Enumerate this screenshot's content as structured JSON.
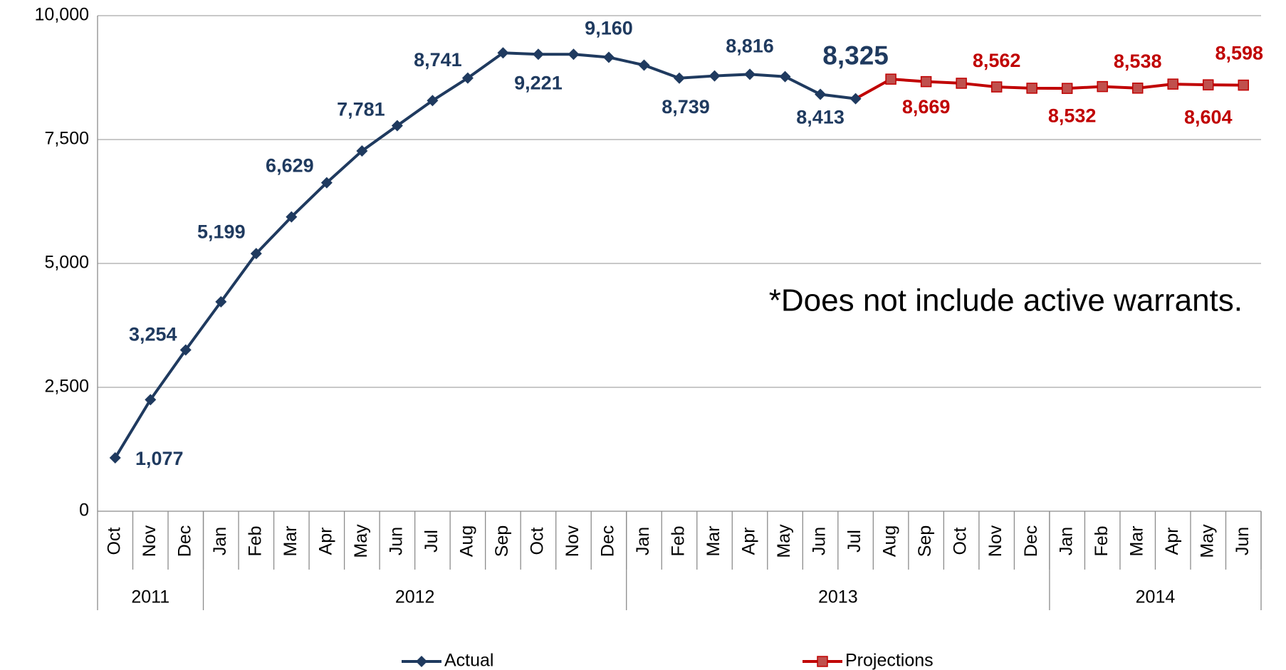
{
  "chart_data": {
    "type": "line",
    "annotation": "*Does not include active warrants.",
    "categories": [
      "Oct",
      "Nov",
      "Dec",
      "Jan",
      "Feb",
      "Mar",
      "Apr",
      "May",
      "Jun",
      "Jul",
      "Aug",
      "Sep",
      "Oct",
      "Nov",
      "Dec",
      "Jan",
      "Feb",
      "Mar",
      "Apr",
      "May",
      "Jun",
      "Jul",
      "Aug",
      "Sep",
      "Oct",
      "Nov",
      "Dec",
      "Jan",
      "Feb",
      "Mar",
      "Apr",
      "May",
      "Jun"
    ],
    "years": [
      {
        "label": "2011",
        "count": 3
      },
      {
        "label": "2012",
        "count": 12
      },
      {
        "label": "2013",
        "count": 12
      },
      {
        "label": "2014",
        "count": 6
      }
    ],
    "series": [
      {
        "name": "Actual",
        "color": "#1f3a5f",
        "marker": "diamond",
        "values": [
          1077,
          2250,
          3254,
          4226,
          5199,
          5940,
          6629,
          7271,
          7781,
          8286,
          8741,
          9250,
          9221,
          9220,
          9160,
          9002,
          8739,
          8785,
          8816,
          8770,
          8413,
          8325,
          null,
          null,
          null,
          null,
          null,
          null,
          null,
          null,
          null,
          null,
          null
        ],
        "value_labels": [
          "1,077",
          null,
          "3,254",
          null,
          "5,199",
          null,
          "6,629",
          null,
          "7,781",
          null,
          "8,741",
          null,
          "9,221",
          null,
          "9,160",
          null,
          "8,739",
          null,
          "8,816",
          null,
          "8,413",
          "8,325",
          null,
          null,
          null,
          null,
          null,
          null,
          null,
          null,
          null,
          null,
          null
        ]
      },
      {
        "name": "Projections",
        "color": "#c00000",
        "marker": "square",
        "values": [
          null,
          null,
          null,
          null,
          null,
          null,
          null,
          null,
          null,
          null,
          null,
          null,
          null,
          null,
          null,
          null,
          null,
          null,
          null,
          null,
          null,
          8325,
          8719,
          8669,
          8636,
          8562,
          8536,
          8532,
          8569,
          8538,
          8619,
          8604,
          8598
        ],
        "value_labels": [
          null,
          null,
          null,
          null,
          null,
          null,
          null,
          null,
          null,
          null,
          null,
          null,
          null,
          null,
          null,
          null,
          null,
          null,
          null,
          null,
          null,
          null,
          null,
          "8,669",
          null,
          "8,562",
          null,
          "8,532",
          null,
          "8,538",
          null,
          "8,604",
          "8,598"
        ]
      }
    ],
    "ylim": [
      0,
      10000
    ],
    "yticks": [
      0,
      {
        "value": 2500,
        "label": "2,500"
      },
      {
        "value": 5000,
        "label": "5,000"
      },
      {
        "value": 7500,
        "label": "7,500"
      },
      {
        "value": 10000,
        "label": "10,000"
      }
    ],
    "grid": true
  }
}
